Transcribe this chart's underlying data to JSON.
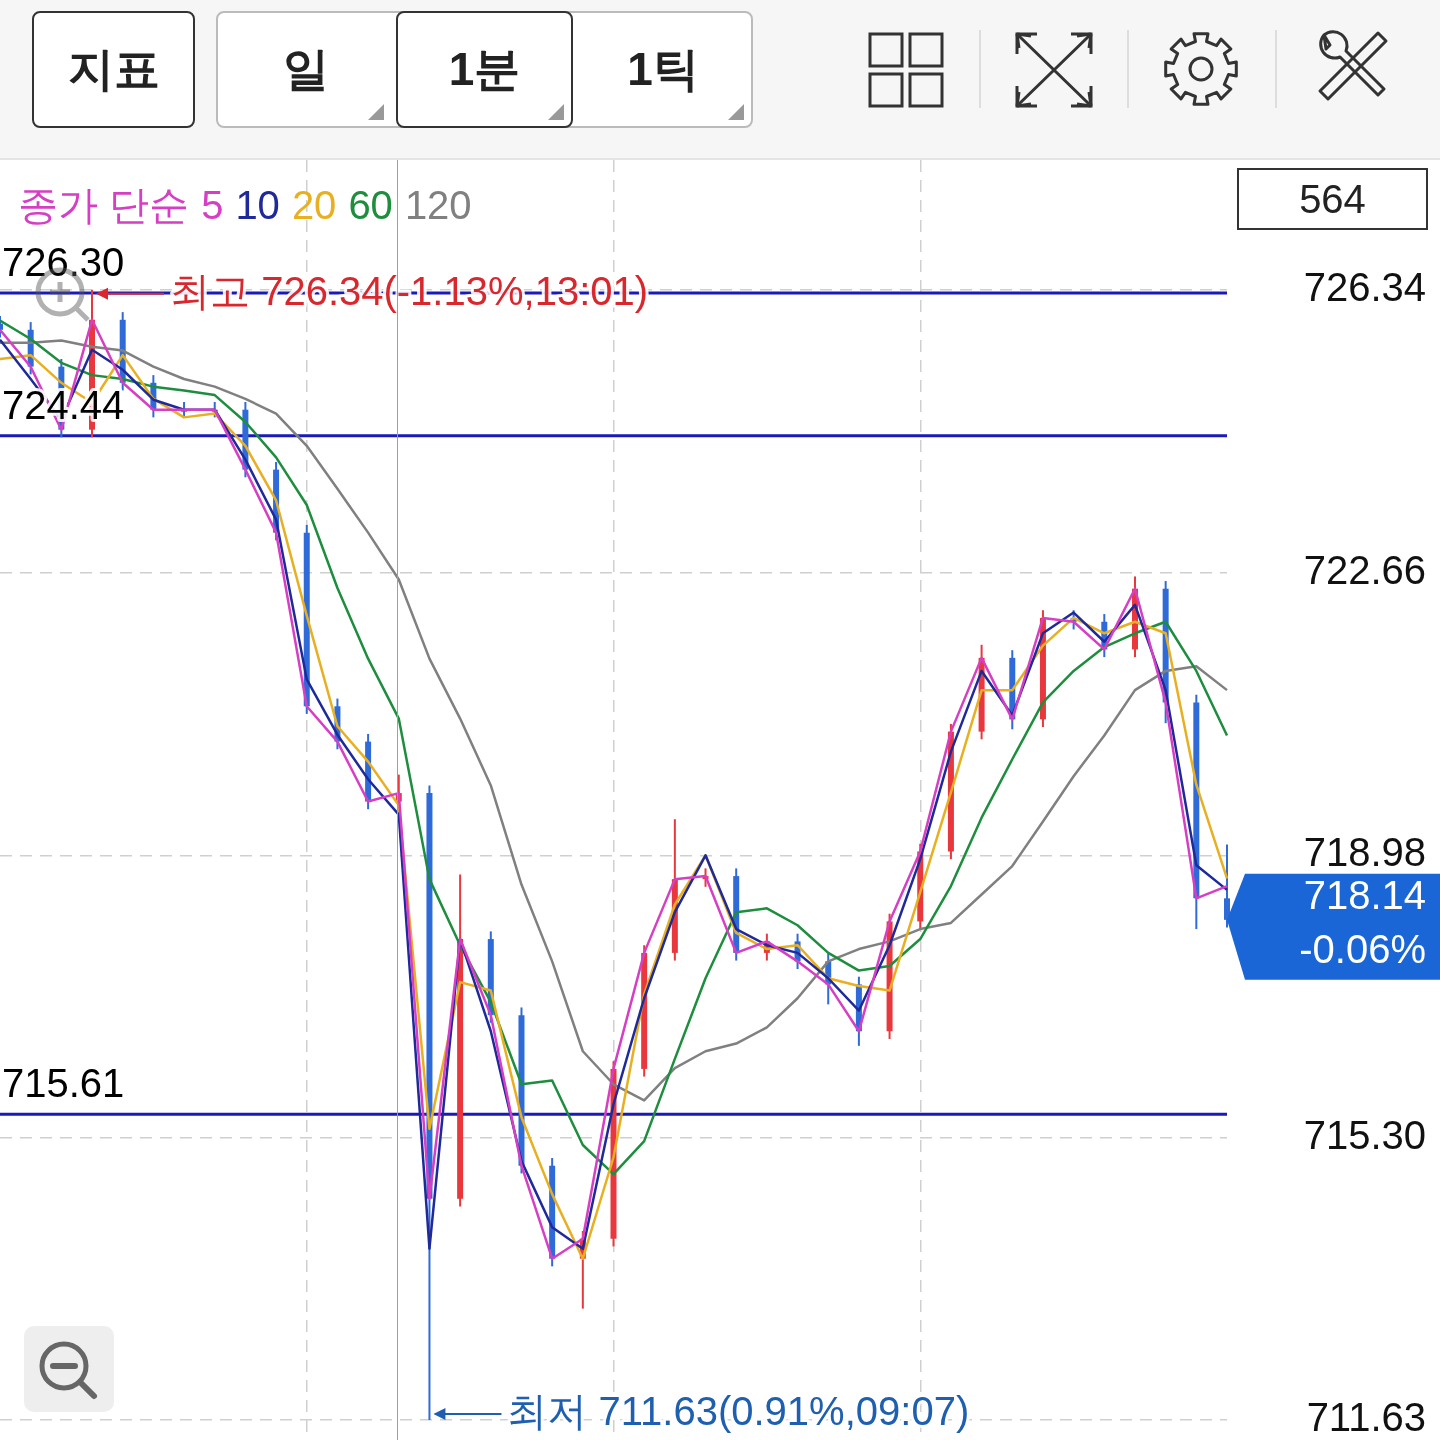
{
  "chart_data": {
    "type": "line",
    "legend_title": "종가 단순",
    "grid": true,
    "marker": "none",
    "tick_labels": "y",
    "categories": [
      null,
      null,
      null,
      null,
      null,
      null,
      null,
      null,
      null,
      null,
      null,
      null,
      null,
      null,
      null,
      null,
      null,
      null,
      null,
      null,
      null,
      null,
      null,
      null,
      null,
      null,
      null,
      null,
      null,
      null,
      null,
      null,
      null,
      null,
      null,
      null,
      null,
      null,
      null,
      null,
      null
    ],
    "ylim": [
      711.37,
      728.03
    ],
    "yticks": [
      711.63,
      {
        "value": 715.3,
        "label": "715.30"
      },
      718.98,
      722.66,
      726.34
    ],
    "series": [
      {
        "type": "candlestick",
        "ohlc": [
          [
            725.9,
            726.0,
            725.72,
            725.82
          ],
          [
            725.82,
            725.92,
            725.24,
            725.34
          ],
          [
            725.34,
            725.44,
            724.42,
            724.52
          ],
          [
            724.52,
            726.34,
            724.42,
            725.95
          ],
          [
            725.95,
            726.05,
            725.03,
            725.13
          ],
          [
            725.13,
            725.23,
            724.68,
            724.78
          ],
          [
            724.78,
            724.88,
            724.68,
            724.78
          ],
          [
            724.78,
            724.88,
            724.68,
            724.78
          ],
          [
            724.78,
            724.88,
            723.9,
            724.0
          ],
          [
            724.0,
            724.1,
            723.08,
            723.18
          ],
          [
            723.18,
            723.28,
            720.82,
            720.92
          ],
          [
            720.92,
            721.02,
            720.36,
            720.46
          ],
          [
            720.46,
            720.56,
            719.58,
            719.68
          ],
          [
            719.68,
            720.03,
            719.58,
            719.79
          ],
          [
            719.79,
            719.89,
            711.63,
            714.51
          ],
          [
            714.51,
            718.73,
            714.41,
            717.89
          ],
          [
            717.89,
            717.99,
            716.8,
            716.9
          ],
          [
            716.9,
            717.0,
            714.84,
            714.94
          ],
          [
            714.94,
            715.04,
            713.63,
            713.73
          ],
          [
            713.73,
            714.09,
            713.08,
            713.99
          ],
          [
            713.99,
            716.3,
            713.89,
            716.2
          ],
          [
            716.2,
            717.81,
            716.1,
            717.71
          ],
          [
            717.71,
            719.45,
            717.61,
            718.67
          ],
          [
            718.67,
            718.81,
            718.57,
            718.71
          ],
          [
            718.71,
            718.81,
            717.61,
            717.71
          ],
          [
            717.71,
            717.96,
            717.61,
            717.86
          ],
          [
            717.86,
            717.96,
            717.5,
            717.6
          ],
          [
            717.6,
            717.7,
            717.04,
            717.3
          ],
          [
            717.3,
            717.4,
            716.5,
            716.69
          ],
          [
            716.69,
            718.22,
            716.59,
            718.12
          ],
          [
            718.12,
            719.13,
            718.02,
            719.03
          ],
          [
            719.03,
            720.69,
            718.93,
            720.59
          ],
          [
            720.59,
            721.72,
            720.49,
            721.55
          ],
          [
            721.55,
            721.65,
            720.62,
            720.75
          ],
          [
            720.75,
            722.17,
            720.65,
            722.07
          ],
          [
            722.07,
            722.17,
            721.92,
            722.02
          ],
          [
            722.02,
            722.12,
            721.56,
            721.66
          ],
          [
            721.66,
            722.61,
            721.56,
            722.45
          ],
          [
            722.45,
            722.55,
            720.7,
            720.97
          ],
          [
            720.97,
            721.07,
            718.02,
            718.42
          ],
          [
            718.42,
            719.12,
            718.04,
            718.14
          ]
        ],
        "colors": [
          "#2e6bd8",
          "#2e6bd8",
          "#2e6bd8",
          "#e8383d",
          "#2e6bd8",
          "#2e6bd8",
          "#2e6bd8",
          "#2e6bd8",
          "#2e6bd8",
          "#2e6bd8",
          "#2e6bd8",
          "#2e6bd8",
          "#2e6bd8",
          "#e8383d",
          "#2e6bd8",
          "#e8383d",
          "#2e6bd8",
          "#2e6bd8",
          "#2e6bd8",
          "#e8383d",
          "#e8383d",
          "#e8383d",
          "#e8383d",
          "#e8383d",
          "#2e6bd8",
          "#e8383d",
          "#2e6bd8",
          "#2e6bd8",
          "#2e6bd8",
          "#e8383d",
          "#e8383d",
          "#e8383d",
          "#e8383d",
          "#2e6bd8",
          "#e8383d",
          "#2e6bd8",
          "#2e6bd8",
          "#e8383d",
          "#2e6bd8",
          "#2e6bd8",
          "#2e6bd8"
        ]
      },
      {
        "name": "5",
        "color": "#d63fc4",
        "values": [
          725.82,
          725.34,
          724.52,
          725.95,
          725.13,
          724.78,
          724.78,
          724.78,
          724.0,
          723.18,
          720.92,
          720.46,
          719.68,
          719.79,
          714.51,
          717.89,
          716.9,
          714.94,
          713.73,
          713.99,
          716.2,
          717.71,
          718.67,
          718.71,
          717.71,
          717.86,
          717.6,
          717.3,
          716.69,
          718.12,
          719.03,
          720.59,
          721.55,
          720.75,
          722.07,
          722.02,
          721.66,
          722.45,
          720.97,
          718.42,
          718.58
        ]
      },
      {
        "name": "10",
        "color": "#1f2a9a",
        "values": [
          725.69,
          725.18,
          724.65,
          725.56,
          725.3,
          724.91,
          724.78,
          724.78,
          724.13,
          723.35,
          721.27,
          720.55,
          719.97,
          719.51,
          713.86,
          717.89,
          716.69,
          715.0,
          714.14,
          713.86,
          715.74,
          717.12,
          718.24,
          718.98,
          718.02,
          717.81,
          717.71,
          717.38,
          716.96,
          717.81,
          718.93,
          720.33,
          721.38,
          720.8,
          721.87,
          722.14,
          721.76,
          722.24,
          721.13,
          718.85,
          718.53
        ]
      },
      {
        "name": "20",
        "color": "#e8b020",
        "values": [
          725.44,
          725.49,
          725.13,
          724.87,
          725.49,
          724.92,
          724.68,
          724.73,
          724.31,
          723.6,
          722.1,
          720.66,
          720.2,
          719.63,
          715.42,
          717.33,
          717.22,
          715.57,
          714.57,
          713.73,
          715.05,
          717.17,
          718.34,
          718.98,
          717.97,
          717.76,
          717.81,
          717.38,
          717.28,
          717.22,
          718.5,
          719.8,
          721.13,
          721.13,
          721.71,
          722.07,
          721.87,
          722.02,
          721.87,
          719.9,
          718.68
        ]
      },
      {
        "name": "60",
        "color": "#1e8e3e",
        "values": [
          725.94,
          725.7,
          725.39,
          725.23,
          725.18,
          725.08,
          725.03,
          724.97,
          724.62,
          724.16,
          723.54,
          722.46,
          721.54,
          720.76,
          718.67,
          717.81,
          717.07,
          716.0,
          716.05,
          715.21,
          714.83,
          715.26,
          716.33,
          717.38,
          718.24,
          718.29,
          718.07,
          717.71,
          717.48,
          717.54,
          717.89,
          718.58,
          719.47,
          720.23,
          720.97,
          721.38,
          721.69,
          721.87,
          722.02,
          721.38,
          720.54
        ]
      },
      {
        "name": "120",
        "color": "#808080",
        "values": [
          725.65,
          725.65,
          725.68,
          725.6,
          725.55,
          725.34,
          725.18,
          725.08,
          724.92,
          724.73,
          724.31,
          723.75,
          723.18,
          722.57,
          721.54,
          720.76,
          719.89,
          718.6,
          717.6,
          716.43,
          716.0,
          715.79,
          716.21,
          716.43,
          716.53,
          716.74,
          717.12,
          717.6,
          717.76,
          717.86,
          718.02,
          718.1,
          718.47,
          718.84,
          719.42,
          720.01,
          720.54,
          721.13,
          721.38,
          721.44,
          721.13
        ]
      }
    ],
    "ref_lines": [
      {
        "axis": "y",
        "value": 726.3,
        "label": "726.30",
        "color": "#1a1ab8"
      },
      {
        "axis": "y",
        "value": 724.44,
        "label": "724.44",
        "color": "#1a1ab8"
      },
      {
        "axis": "y",
        "value": 715.61,
        "label": "715.61",
        "color": "#1a1ab8"
      }
    ],
    "annotations": [
      "지표",
      "일",
      "1분",
      "1틱",
      "564",
      "718.14",
      "-0.06%",
      {
        "text": "최고 726.34(-1.13%,13:01)",
        "y": 726.34
      },
      "최저 711.63(0.91%,09:07)"
    ]
  }
}
